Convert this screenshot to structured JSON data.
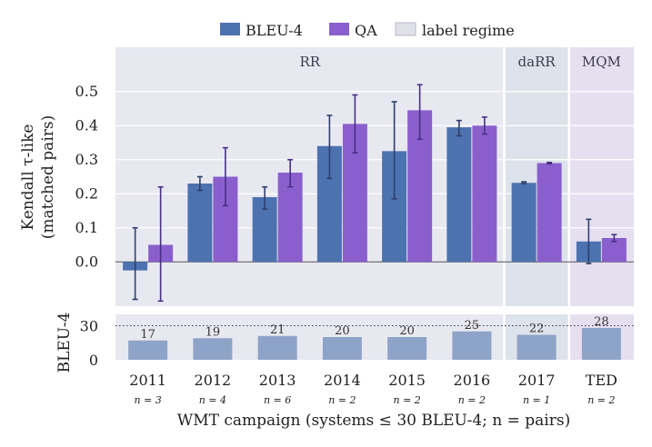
{
  "chart_data": {
    "type": "bar",
    "categories": [
      "2011",
      "2012",
      "2013",
      "2014",
      "2015",
      "2016",
      "2017",
      "TED"
    ],
    "pairs_labels": [
      "n = 3",
      "n = 4",
      "n = 6",
      "n = 2",
      "n = 2",
      "n = 2",
      "n = 1",
      "n = 2"
    ],
    "regimes": [
      {
        "name": "RR",
        "categories": [
          "2011",
          "2012",
          "2013",
          "2014",
          "2015",
          "2016"
        ],
        "color": "#e8e8f1"
      },
      {
        "name": "daRR",
        "categories": [
          "2017"
        ],
        "color": "#dde3ea"
      },
      {
        "name": "MQM",
        "categories": [
          "TED"
        ],
        "color": "#e6dff0"
      }
    ],
    "series": [
      {
        "name": "BLEU-4",
        "color": "#4c72b0",
        "values": [
          -0.025,
          0.23,
          0.19,
          0.34,
          0.325,
          0.395,
          0.232,
          0.06
        ],
        "err_low": [
          -0.11,
          0.21,
          0.155,
          0.245,
          0.185,
          0.37,
          0.23,
          -0.005
        ],
        "err_high": [
          0.1,
          0.25,
          0.22,
          0.43,
          0.47,
          0.415,
          0.235,
          0.125
        ]
      },
      {
        "name": "QA",
        "color": "#8a5fcd",
        "values": [
          0.05,
          0.25,
          0.262,
          0.405,
          0.445,
          0.4,
          0.29,
          0.07
        ],
        "err_low": [
          -0.115,
          0.165,
          0.22,
          0.32,
          0.36,
          0.375,
          0.288,
          0.06
        ],
        "err_high": [
          0.22,
          0.335,
          0.3,
          0.49,
          0.52,
          0.425,
          0.292,
          0.08
        ]
      }
    ],
    "ylim": [
      -0.13,
      0.63
    ],
    "yticks": [
      "0.0",
      "0.1",
      "0.2",
      "0.3",
      "0.4",
      "0.5"
    ],
    "ylabel_line1": "Kendall τ-like",
    "ylabel_line2": "(matched pairs)",
    "legend_regime_label": "label regime",
    "legend_position": "top-center",
    "grid": true,
    "bleu_panel": {
      "ylabel": "BLEU-4",
      "values": [
        17,
        19,
        21,
        20,
        20,
        25,
        22,
        28
      ],
      "ylim": [
        0,
        40
      ],
      "yticks": [
        "0",
        "30"
      ],
      "threshold": 30,
      "color": "#8ea3c8"
    },
    "xlabel": "WMT campaign  (systems ≤ 30 BLEU-4; n = pairs)"
  }
}
